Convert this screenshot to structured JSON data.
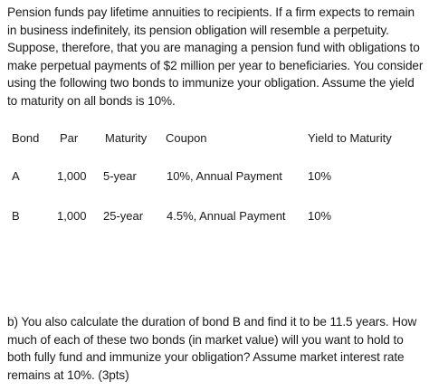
{
  "intro": "Pension funds pay lifetime annuities to recipients. If a firm expects to remain in business indefinitely, its pension obligation will resemble a perpetuity. Suppose, therefore, that you are managing a pension fund with obligations to make perpetual payments of $2 million per year to beneficiaries. You consider using the following two bonds to immunize your obligation. Assume the yield to maturity on all bonds is 10%.",
  "table": {
    "headers": {
      "bond": "Bond",
      "par": "Par",
      "maturity": "Maturity",
      "coupon": "Coupon",
      "ytm": "Yield to Maturity"
    },
    "rows": [
      {
        "bond": "A",
        "par": "1,000",
        "maturity": "5-year",
        "coupon": "10%, Annual Payment",
        "ytm": "10%"
      },
      {
        "bond": "B",
        "par": "1,000",
        "maturity": "25-year",
        "coupon": "4.5%, Annual Payment",
        "ytm": "10%"
      }
    ]
  },
  "question": "b) You also calculate the duration of bond B and find it to be 11.5 years. How much of each of these two bonds (in market value) will you want to hold to both fully fund and immunize your obligation? Assume market interest rate remains at 10%. (3pts)"
}
